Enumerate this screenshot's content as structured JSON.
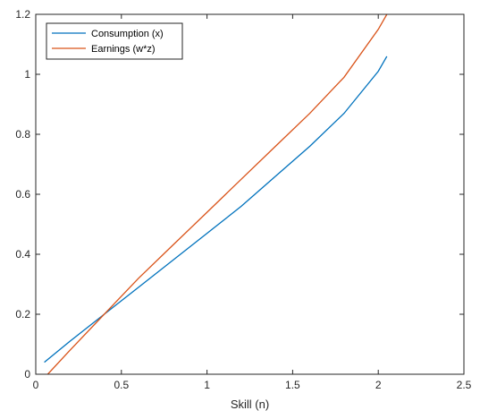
{
  "chart_data": {
    "type": "line",
    "title": "",
    "xlabel": "Skill (n)",
    "ylabel": "",
    "xlim": [
      0,
      2.5
    ],
    "ylim": [
      0,
      1.2
    ],
    "xticks": [
      0,
      0.5,
      1,
      1.5,
      2,
      2.5
    ],
    "xtick_labels": [
      "0",
      "0.5",
      "1",
      "1.5",
      "2",
      "2.5"
    ],
    "yticks": [
      0,
      0.2,
      0.4,
      0.6,
      0.8,
      1,
      1.2
    ],
    "ytick_labels": [
      "0",
      "0.2",
      "0.4",
      "0.6",
      "0.8",
      "1",
      "1.2"
    ],
    "grid": false,
    "legend_position": "top-left",
    "series": [
      {
        "name": "Consumption (x)",
        "color": "#0072BD",
        "x": [
          0.05,
          0.2,
          0.4,
          0.6,
          0.8,
          1.0,
          1.2,
          1.4,
          1.6,
          1.8,
          2.0,
          2.05
        ],
        "y": [
          0.04,
          0.11,
          0.2,
          0.29,
          0.38,
          0.47,
          0.56,
          0.66,
          0.76,
          0.87,
          1.01,
          1.06
        ]
      },
      {
        "name": "Earnings (w*z)",
        "color": "#D95319",
        "x": [
          0.07,
          0.2,
          0.4,
          0.6,
          0.8,
          1.0,
          1.2,
          1.4,
          1.6,
          1.8,
          2.0,
          2.05
        ],
        "y": [
          0.0,
          0.08,
          0.2,
          0.32,
          0.43,
          0.54,
          0.65,
          0.76,
          0.87,
          0.99,
          1.15,
          1.2
        ]
      }
    ]
  }
}
